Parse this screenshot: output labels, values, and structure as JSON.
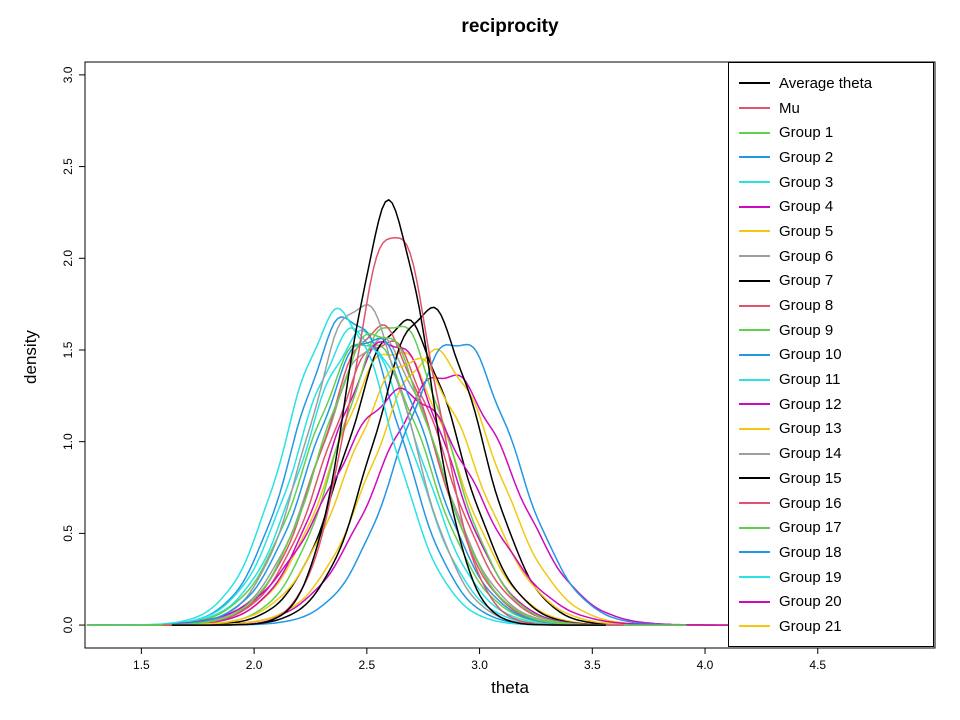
{
  "title": "reciprocity",
  "axes": {
    "xlabel": "theta",
    "ylabel": "density"
  },
  "chart_data": {
    "type": "line",
    "title": "reciprocity",
    "xlabel": "theta",
    "ylabel": "density",
    "xlim": [
      1.25,
      5.02
    ],
    "ylim": [
      0,
      3.05
    ],
    "x_ticks": [
      1.5,
      2.0,
      2.5,
      3.0,
      3.5,
      4.0,
      4.5
    ],
    "y_ticks": [
      0.0,
      0.5,
      1.0,
      1.5,
      2.0,
      2.5,
      3.0
    ],
    "grid": false,
    "legend_position": "topright",
    "curve_model": "gaussian-density-approximation",
    "series": [
      {
        "name": "Average theta",
        "color": "#000000",
        "mean": 2.6,
        "sd": 0.175,
        "peak": 2.28
      },
      {
        "name": "Mu",
        "color": "#DF536B",
        "mean": 2.62,
        "sd": 0.186,
        "peak": 2.15
      },
      {
        "name": "Group 1",
        "color": "#61D04F",
        "mean": 2.55,
        "sd": 0.25,
        "peak": 1.6
      },
      {
        "name": "Group 2",
        "color": "#2297E6",
        "mean": 2.52,
        "sd": 0.254,
        "peak": 1.57
      },
      {
        "name": "Group 3",
        "color": "#28E2E5",
        "mean": 2.38,
        "sd": 0.235,
        "peak": 1.7
      },
      {
        "name": "Group 4",
        "color": "#CD0BBC",
        "mean": 2.66,
        "sd": 0.314,
        "peak": 1.27
      },
      {
        "name": "Group 5",
        "color": "#F5C710",
        "mean": 2.7,
        "sd": 0.275,
        "peak": 1.45
      },
      {
        "name": "Group 6",
        "color": "#9E9E9E",
        "mean": 2.47,
        "sd": 0.228,
        "peak": 1.75
      },
      {
        "name": "Group 7",
        "color": "#000000",
        "mean": 2.77,
        "sd": 0.232,
        "peak": 1.72
      },
      {
        "name": "Group 8",
        "color": "#DF536B",
        "mean": 2.55,
        "sd": 0.246,
        "peak": 1.62
      },
      {
        "name": "Group 9",
        "color": "#61D04F",
        "mean": 2.62,
        "sd": 0.242,
        "peak": 1.65
      },
      {
        "name": "Group 10",
        "color": "#2297E6",
        "mean": 2.9,
        "sd": 0.257,
        "peak": 1.55
      },
      {
        "name": "Group 11",
        "color": "#28E2E5",
        "mean": 2.45,
        "sd": 0.249,
        "peak": 1.6
      },
      {
        "name": "Group 12",
        "color": "#CD0BBC",
        "mean": 2.6,
        "sd": 0.257,
        "peak": 1.55
      },
      {
        "name": "Group 13",
        "color": "#F5C710",
        "mean": 2.8,
        "sd": 0.27,
        "peak": 1.48
      },
      {
        "name": "Group 14",
        "color": "#9E9E9E",
        "mean": 2.55,
        "sd": 0.257,
        "peak": 1.55
      },
      {
        "name": "Group 15",
        "color": "#000000",
        "mean": 2.66,
        "sd": 0.242,
        "peak": 1.65
      },
      {
        "name": "Group 16",
        "color": "#DF536B",
        "mean": 2.58,
        "sd": 0.257,
        "peak": 1.55
      },
      {
        "name": "Group 17",
        "color": "#61D04F",
        "mean": 2.5,
        "sd": 0.257,
        "peak": 1.55
      },
      {
        "name": "Group 18",
        "color": "#2297E6",
        "mean": 2.42,
        "sd": 0.237,
        "peak": 1.68
      },
      {
        "name": "Group 19",
        "color": "#28E2E5",
        "mean": 2.48,
        "sd": 0.252,
        "peak": 1.58
      },
      {
        "name": "Group 20",
        "color": "#CD0BBC",
        "mean": 2.85,
        "sd": 0.29,
        "peak": 1.37
      },
      {
        "name": "Group 21",
        "color": "#F5C710",
        "mean": 2.62,
        "sd": 0.266,
        "peak": 1.5
      }
    ]
  }
}
